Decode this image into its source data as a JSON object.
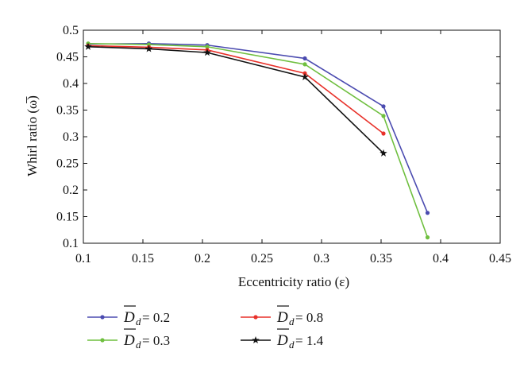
{
  "chart_data": {
    "type": "line",
    "title": "",
    "xlabel": "Eccentricity ratio (ε)",
    "ylabel": "Whirl ratio (ω̅)",
    "xlim": [
      0.1,
      0.45
    ],
    "ylim": [
      0.1,
      0.5
    ],
    "xticks": [
      "0.1",
      "0.15",
      "0.2",
      "0.25",
      "0.3",
      "0.35",
      "0.4",
      "0.45"
    ],
    "yticks": [
      "0.1",
      "0.15",
      "0.2",
      "0.25",
      "0.3",
      "0.35",
      "0.4",
      "0.45",
      "0.5"
    ],
    "grid": false,
    "legend_position": "bottom",
    "series": [
      {
        "name": "D_d = 0.2",
        "symbol": "D",
        "subscript": "d",
        "value_text": " = 0.2",
        "color": "#4b4bb0",
        "marker": "dot",
        "x": [
          0.104,
          0.155,
          0.204,
          0.286,
          0.352,
          0.389
        ],
        "y": [
          0.474,
          0.475,
          0.472,
          0.447,
          0.357,
          0.157
        ]
      },
      {
        "name": "D_d = 0.3",
        "symbol": "D",
        "subscript": "d",
        "value_text": " = 0.3",
        "color": "#6fbf3f",
        "marker": "dot",
        "x": [
          0.104,
          0.155,
          0.204,
          0.286,
          0.352,
          0.389
        ],
        "y": [
          0.475,
          0.473,
          0.469,
          0.436,
          0.339,
          0.111
        ]
      },
      {
        "name": "D_d = 0.8",
        "symbol": "D",
        "subscript": "d",
        "value_text": " = 0.8",
        "color": "#e8312a",
        "marker": "dot",
        "x": [
          0.104,
          0.155,
          0.204,
          0.286,
          0.352
        ],
        "y": [
          0.471,
          0.468,
          0.463,
          0.419,
          0.306
        ]
      },
      {
        "name": "D_d = 1.4",
        "symbol": "D",
        "subscript": "d",
        "value_text": " = 1.4",
        "color": "#111111",
        "marker": "star",
        "x": [
          0.104,
          0.155,
          0.204,
          0.286,
          0.352
        ],
        "y": [
          0.469,
          0.465,
          0.458,
          0.412,
          0.269
        ]
      }
    ]
  }
}
